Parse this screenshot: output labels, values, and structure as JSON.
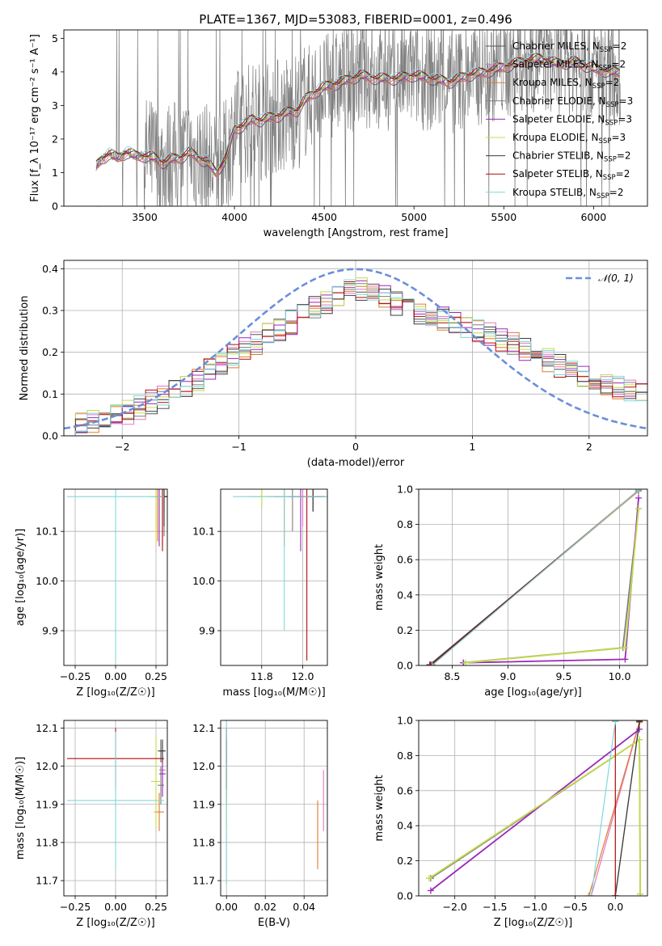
{
  "figure": {
    "title": "PLATE=1367, MJD=53083, FIBERID=0001, z=0.496"
  },
  "palette": [
    "#555555",
    "#e376c2",
    "#e07b2d",
    "#7f7f7f",
    "#9a28b8",
    "#c3dc4b",
    "#3b3b3b",
    "#b10c0c",
    "#7fd8dc"
  ],
  "chart_data": [
    {
      "id": "spectrum",
      "type": "line",
      "title": "PLATE=1367, MJD=53083, FIBERID=0001, z=0.496",
      "xlabel": "wavelength [Angstrom, rest frame]",
      "ylabel": "Flux [f_λ 10⁻¹⁷ erg cm⁻² s⁻¹ A⁻¹]",
      "xlim": [
        3050,
        6300
      ],
      "ylim": [
        0,
        5.25
      ],
      "xticks": [
        "3500",
        "4000",
        "4500",
        "5000",
        "5500",
        "6000"
      ],
      "yticks": [
        "0",
        "1",
        "2",
        "3",
        "4",
        "5"
      ],
      "legend_position": "right",
      "legend": [
        {
          "base": "Chabrier MILES, N",
          "sub": "SSP",
          "tail": "=2"
        },
        {
          "base": "Salpeter MILES, N",
          "sub": "SSP",
          "tail": "=2"
        },
        {
          "base": "Kroupa MILES, N",
          "sub": "SSP",
          "tail": "=2"
        },
        {
          "base": "Chabrier ELODIE, N",
          "sub": "SSP",
          "tail": "=3"
        },
        {
          "base": "Salpeter ELODIE, N",
          "sub": "SSP",
          "tail": "=3"
        },
        {
          "base": "Kroupa ELODIE, N",
          "sub": "SSP",
          "tail": "=3"
        },
        {
          "base": "Chabrier STELIB, N",
          "sub": "SSP",
          "tail": "=2"
        },
        {
          "base": "Salpeter STELIB, N",
          "sub": "SSP",
          "tail": "=2"
        },
        {
          "base": "Kroupa STELIB, N",
          "sub": "SSP",
          "tail": "=2"
        }
      ],
      "model_x": [
        3230,
        3260,
        3300,
        3350,
        3400,
        3450,
        3500,
        3550,
        3600,
        3650,
        3700,
        3750,
        3800,
        3850,
        3900,
        3950,
        4000,
        4050,
        4100,
        4150,
        4200,
        4250,
        4300,
        4350,
        4400,
        4450,
        4500,
        4600,
        4700,
        4800,
        4900,
        5000,
        5100,
        5200,
        5300,
        5400,
        5500,
        5600,
        5700,
        5800,
        5900,
        6000,
        6100,
        6150
      ],
      "model_y": [
        1.2,
        1.4,
        1.55,
        1.45,
        1.6,
        1.5,
        1.5,
        1.45,
        1.3,
        1.4,
        1.45,
        1.6,
        1.45,
        1.3,
        1.0,
        1.4,
        2.3,
        2.4,
        2.6,
        2.55,
        2.65,
        2.7,
        2.8,
        2.85,
        3.2,
        3.4,
        3.55,
        3.7,
        3.9,
        3.8,
        3.8,
        3.9,
        3.8,
        3.7,
        3.9,
        4.0,
        4.15,
        4.3,
        4.4,
        4.25,
        4.3,
        4.1,
        4.0,
        4.0
      ]
    },
    {
      "id": "residuals",
      "type": "line",
      "xlabel": "(data-model)/error",
      "ylabel": "Normed distribution",
      "xlim": [
        -2.5,
        2.5
      ],
      "ylim": [
        0,
        0.42
      ],
      "xticks": [
        "−2",
        "−1",
        "0",
        "1",
        "2"
      ],
      "yticks": [
        "0.0",
        "0.1",
        "0.2",
        "0.3",
        "0.4"
      ],
      "legend": [
        "𝒩(0, 1)"
      ],
      "legend_position": "top-right",
      "hist_x": [
        -2.5,
        -2.0,
        -1.5,
        -1.0,
        -0.5,
        0.0,
        0.5,
        1.0,
        1.5,
        2.0,
        2.5
      ],
      "hist_y": [
        0.025,
        0.05,
        0.11,
        0.2,
        0.28,
        0.36,
        0.3,
        0.26,
        0.2,
        0.13,
        0.1
      ]
    },
    {
      "id": "age-vs-Z",
      "type": "scatter",
      "xlabel": "Z [log₁₀(Z/Z☉)]",
      "ylabel": "age  [log₁₀(age/yr)]",
      "xlim": [
        -0.32,
        0.32
      ],
      "ylim": [
        9.83,
        10.185
      ],
      "xticks": [
        "−0.25",
        "0.00",
        "0.25"
      ],
      "yticks": [
        "9.9",
        "10.0",
        "10.1"
      ],
      "points": [
        {
          "x": 0.3,
          "y": 10.17,
          "xerr": 0.02,
          "yerr": 0.03
        },
        {
          "x": 0.29,
          "y": 10.17,
          "xerr": 0.02,
          "yerr": 0.1
        },
        {
          "x": 0.26,
          "y": 10.17,
          "xerr": 0.02,
          "yerr": 0.09
        },
        {
          "x": 0.3,
          "y": 10.17,
          "xerr": 0.02,
          "yerr": 0.08
        },
        {
          "x": 0.27,
          "y": 10.17,
          "xerr": 0.02,
          "yerr": 0.1
        },
        {
          "x": 0.25,
          "y": 10.17,
          "xerr": 0.04,
          "yerr": 0.1
        },
        {
          "x": 0.3,
          "y": 10.17,
          "xerr": 0.02,
          "yerr": 0.06
        },
        {
          "x": 0.29,
          "y": 10.17,
          "xerr": 0.03,
          "yerr": 0.11
        },
        {
          "x": 0.0,
          "y": 10.17,
          "xerr": 0.3,
          "yerr": 0.33
        }
      ]
    },
    {
      "id": "age-vs-mass",
      "type": "scatter",
      "xlabel": "mass [log₁₀(M/M☉)]",
      "ylabel": "",
      "xlim": [
        11.6,
        12.12
      ],
      "ylim": [
        9.83,
        10.185
      ],
      "xticks": [
        "11.8",
        "12.0"
      ],
      "yticks": [
        "9.9",
        "10.0",
        "10.1"
      ],
      "points": [
        {
          "x": 12.05,
          "y": 10.17,
          "xerr": 0.06,
          "yerr": 0.03
        },
        {
          "x": 12.0,
          "y": 10.17,
          "xerr": 0.07,
          "yerr": 0.06
        },
        {
          "x": 11.91,
          "y": 10.17,
          "xerr": 0.08,
          "yerr": 0.1
        },
        {
          "x": 11.95,
          "y": 10.17,
          "xerr": 0.09,
          "yerr": 0.07
        },
        {
          "x": 11.99,
          "y": 10.17,
          "xerr": 0.06,
          "yerr": 0.11
        },
        {
          "x": 11.8,
          "y": 10.17,
          "xerr": 0.06,
          "yerr": 0.02
        },
        {
          "x": 12.05,
          "y": 10.17,
          "xerr": 0.06,
          "yerr": 0.03
        },
        {
          "x": 12.02,
          "y": 10.17,
          "xerr": 0.07,
          "yerr": 0.33
        },
        {
          "x": 11.91,
          "y": 10.17,
          "xerr": 0.25,
          "yerr": 0.27
        }
      ]
    },
    {
      "id": "weight-vs-age",
      "type": "line",
      "xlabel": "age  [log₁₀(age/yr)]",
      "ylabel": "mass weight",
      "xlim": [
        8.2,
        10.25
      ],
      "ylim": [
        0,
        1.0
      ],
      "xticks": [
        "8.5",
        "9.0",
        "9.5",
        "10.0"
      ],
      "yticks": [
        "0.0",
        "0.2",
        "0.4",
        "0.6",
        "0.8",
        "1.0"
      ],
      "series": [
        {
          "x": [
            8.3,
            10.17
          ],
          "y": [
            0.005,
            0.99
          ]
        },
        {
          "x": [
            8.31,
            10.17
          ],
          "y": [
            0.005,
            0.99
          ]
        },
        {
          "x": [
            8.32,
            10.17
          ],
          "y": [
            0.005,
            0.99
          ]
        },
        {
          "x": [
            8.6,
            10.03,
            10.17
          ],
          "y": [
            0.015,
            0.1,
            0.89
          ]
        },
        {
          "x": [
            8.6,
            10.05,
            10.17
          ],
          "y": [
            0.015,
            0.035,
            0.95
          ]
        },
        {
          "x": [
            8.62,
            10.05,
            10.17
          ],
          "y": [
            0.015,
            0.1,
            0.89
          ]
        },
        {
          "x": [
            8.3,
            10.17
          ],
          "y": [
            0.0,
            0.995
          ]
        },
        {
          "x": [
            8.31,
            10.17
          ],
          "y": [
            0.0,
            0.995
          ]
        },
        {
          "x": [
            8.32,
            10.17
          ],
          "y": [
            0.0,
            0.995
          ]
        }
      ]
    },
    {
      "id": "mass-vs-Z",
      "type": "scatter",
      "xlabel": "Z [log₁₀(Z/Z☉)]",
      "ylabel": "mass [log₁₀(M/M☉)]",
      "xlim": [
        -0.32,
        0.32
      ],
      "ylim": [
        11.66,
        12.12
      ],
      "xticks": [
        "−0.25",
        "0.00",
        "0.25"
      ],
      "yticks": [
        "11.7",
        "11.8",
        "11.9",
        "12.0",
        "12.1"
      ],
      "points": [
        {
          "x": 0.28,
          "y": 12.04,
          "xerr": 0.02,
          "yerr": 0.03
        },
        {
          "x": 0.29,
          "y": 11.99,
          "xerr": 0.02,
          "yerr": 0.07
        },
        {
          "x": 0.27,
          "y": 11.88,
          "xerr": 0.03,
          "yerr": 0.05
        },
        {
          "x": 0.28,
          "y": 11.95,
          "xerr": 0.02,
          "yerr": 0.05
        },
        {
          "x": 0.29,
          "y": 11.98,
          "xerr": 0.02,
          "yerr": 0.06
        },
        {
          "x": 0.25,
          "y": 11.96,
          "xerr": 0.03,
          "yerr": 0.12
        },
        {
          "x": 0.29,
          "y": 12.04,
          "xerr": 0.02,
          "yerr": 0.03
        },
        {
          "x": 0.0,
          "y": 12.02,
          "xerr": 0.3,
          "yerr": 0.08
        },
        {
          "x": 0.0,
          "y": 11.91,
          "xerr": 0.3,
          "yerr": 0.18
        }
      ]
    },
    {
      "id": "mass-vs-EBV",
      "type": "scatter",
      "xlabel": "E(B-V)",
      "ylabel": "",
      "xlim": [
        -0.003,
        0.052
      ],
      "ylim": [
        11.66,
        12.12
      ],
      "xticks": [
        "0.00",
        "0.02",
        "0.04"
      ],
      "yticks": [
        "11.7",
        "11.8",
        "11.9",
        "12.0",
        "12.1"
      ],
      "points": [
        {
          "x": 0.0,
          "y": 12.04,
          "xerr": 0.0,
          "yerr": 0.03
        },
        {
          "x": 0.05,
          "y": 11.91,
          "xerr": 0.0,
          "yerr": 0.08
        },
        {
          "x": 0.047,
          "y": 11.82,
          "xerr": 0.0,
          "yerr": 0.09
        },
        {
          "x": 0.0,
          "y": 11.95,
          "xerr": 0.0,
          "yerr": 0.05
        },
        {
          "x": 0.0,
          "y": 11.98,
          "xerr": 0.0,
          "yerr": 0.06
        },
        {
          "x": 0.0,
          "y": 11.96,
          "xerr": 0.0,
          "yerr": 0.12
        },
        {
          "x": 0.0,
          "y": 12.04,
          "xerr": 0.0,
          "yerr": 0.03
        },
        {
          "x": 0.0,
          "y": 12.02,
          "xerr": 0.0,
          "yerr": 0.08
        },
        {
          "x": 0.0,
          "y": 11.91,
          "xerr": 0.0,
          "yerr": 0.22
        }
      ]
    },
    {
      "id": "weight-vs-Z",
      "type": "line",
      "xlabel": "Z [log₁₀(Z/Z☉)]",
      "ylabel": "mass weight",
      "xlim": [
        -2.45,
        0.4
      ],
      "ylim": [
        0,
        1.0
      ],
      "xticks": [
        "−2.0",
        "−1.5",
        "−1.0",
        "−0.5",
        "0.0"
      ],
      "yticks": [
        "0.0",
        "0.2",
        "0.4",
        "0.6",
        "0.8",
        "1.0"
      ],
      "series": [
        {
          "x": [
            0.0,
            0.3
          ],
          "y": [
            0.0,
            0.99
          ]
        },
        {
          "x": [
            -0.3,
            0.3
          ],
          "y": [
            0.0,
            0.99
          ]
        },
        {
          "x": [
            -0.33,
            0.3
          ],
          "y": [
            0.0,
            0.99
          ]
        },
        {
          "x": [
            -2.3,
            0.3,
            0.31
          ],
          "y": [
            0.1,
            0.89,
            0.01
          ]
        },
        {
          "x": [
            -2.3,
            0.3
          ],
          "y": [
            0.03,
            0.95
          ]
        },
        {
          "x": [
            -2.32,
            0.3,
            0.31
          ],
          "y": [
            0.1,
            0.89,
            0.01
          ]
        },
        {
          "x": [
            0.0,
            0.3
          ],
          "y": [
            0.0,
            0.995
          ]
        },
        {
          "x": [
            0.0,
            0.0
          ],
          "y": [
            0.0,
            0.995
          ]
        },
        {
          "x": [
            -0.3,
            0.0
          ],
          "y": [
            0.0,
            0.995
          ]
        }
      ]
    }
  ]
}
